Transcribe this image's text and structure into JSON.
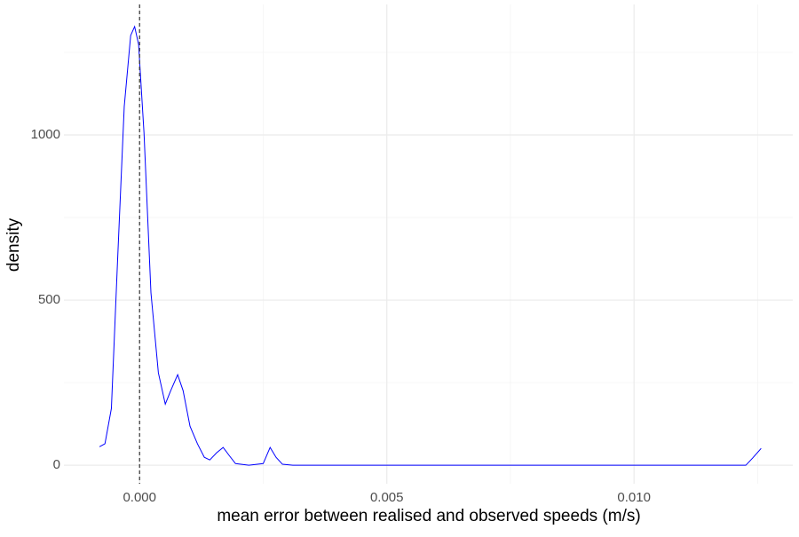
{
  "chart_data": {
    "type": "line",
    "x_label": "mean error between realised and observed speeds (m/s)",
    "y_label": "density",
    "series": [
      {
        "color": "#0000ff",
        "x": [
          -0.00081,
          -0.0007,
          -0.00057,
          -0.00045,
          -0.00031,
          -0.00018,
          -0.0001,
          -2e-05,
          9e-05,
          0.00023,
          0.00038,
          0.00052,
          0.00063,
          0.00077,
          0.00088,
          0.00102,
          0.00117,
          0.00131,
          0.00142,
          0.00156,
          0.00169,
          0.00181,
          0.00194,
          0.00221,
          0.0025,
          0.00264,
          0.00276,
          0.00289,
          0.0031,
          0.01226,
          0.0124,
          0.01257
        ],
        "values": [
          56,
          65,
          172,
          602,
          1086,
          1301,
          1328,
          1274,
          1005,
          522,
          280,
          185,
          226,
          274,
          226,
          118,
          65,
          24,
          16,
          38,
          54,
          30,
          5,
          0,
          5,
          54,
          24,
          3,
          0,
          0,
          22,
          51
        ]
      }
    ],
    "vline": 0,
    "xlim": [
      -0.00153,
      0.01321
    ],
    "ylim": [
      -56,
      1395
    ],
    "xticks": [
      {
        "value": 0,
        "label": "0.000"
      },
      {
        "value": 0.005,
        "label": "0.005"
      },
      {
        "value": 0.01,
        "label": "0.010"
      }
    ],
    "x_minor_ticks": [
      0.0025,
      0.0075,
      0.0125
    ],
    "yticks": [
      0,
      500,
      1000
    ],
    "y_minor_ticks": [
      250,
      750,
      1250
    ],
    "grid": true
  }
}
